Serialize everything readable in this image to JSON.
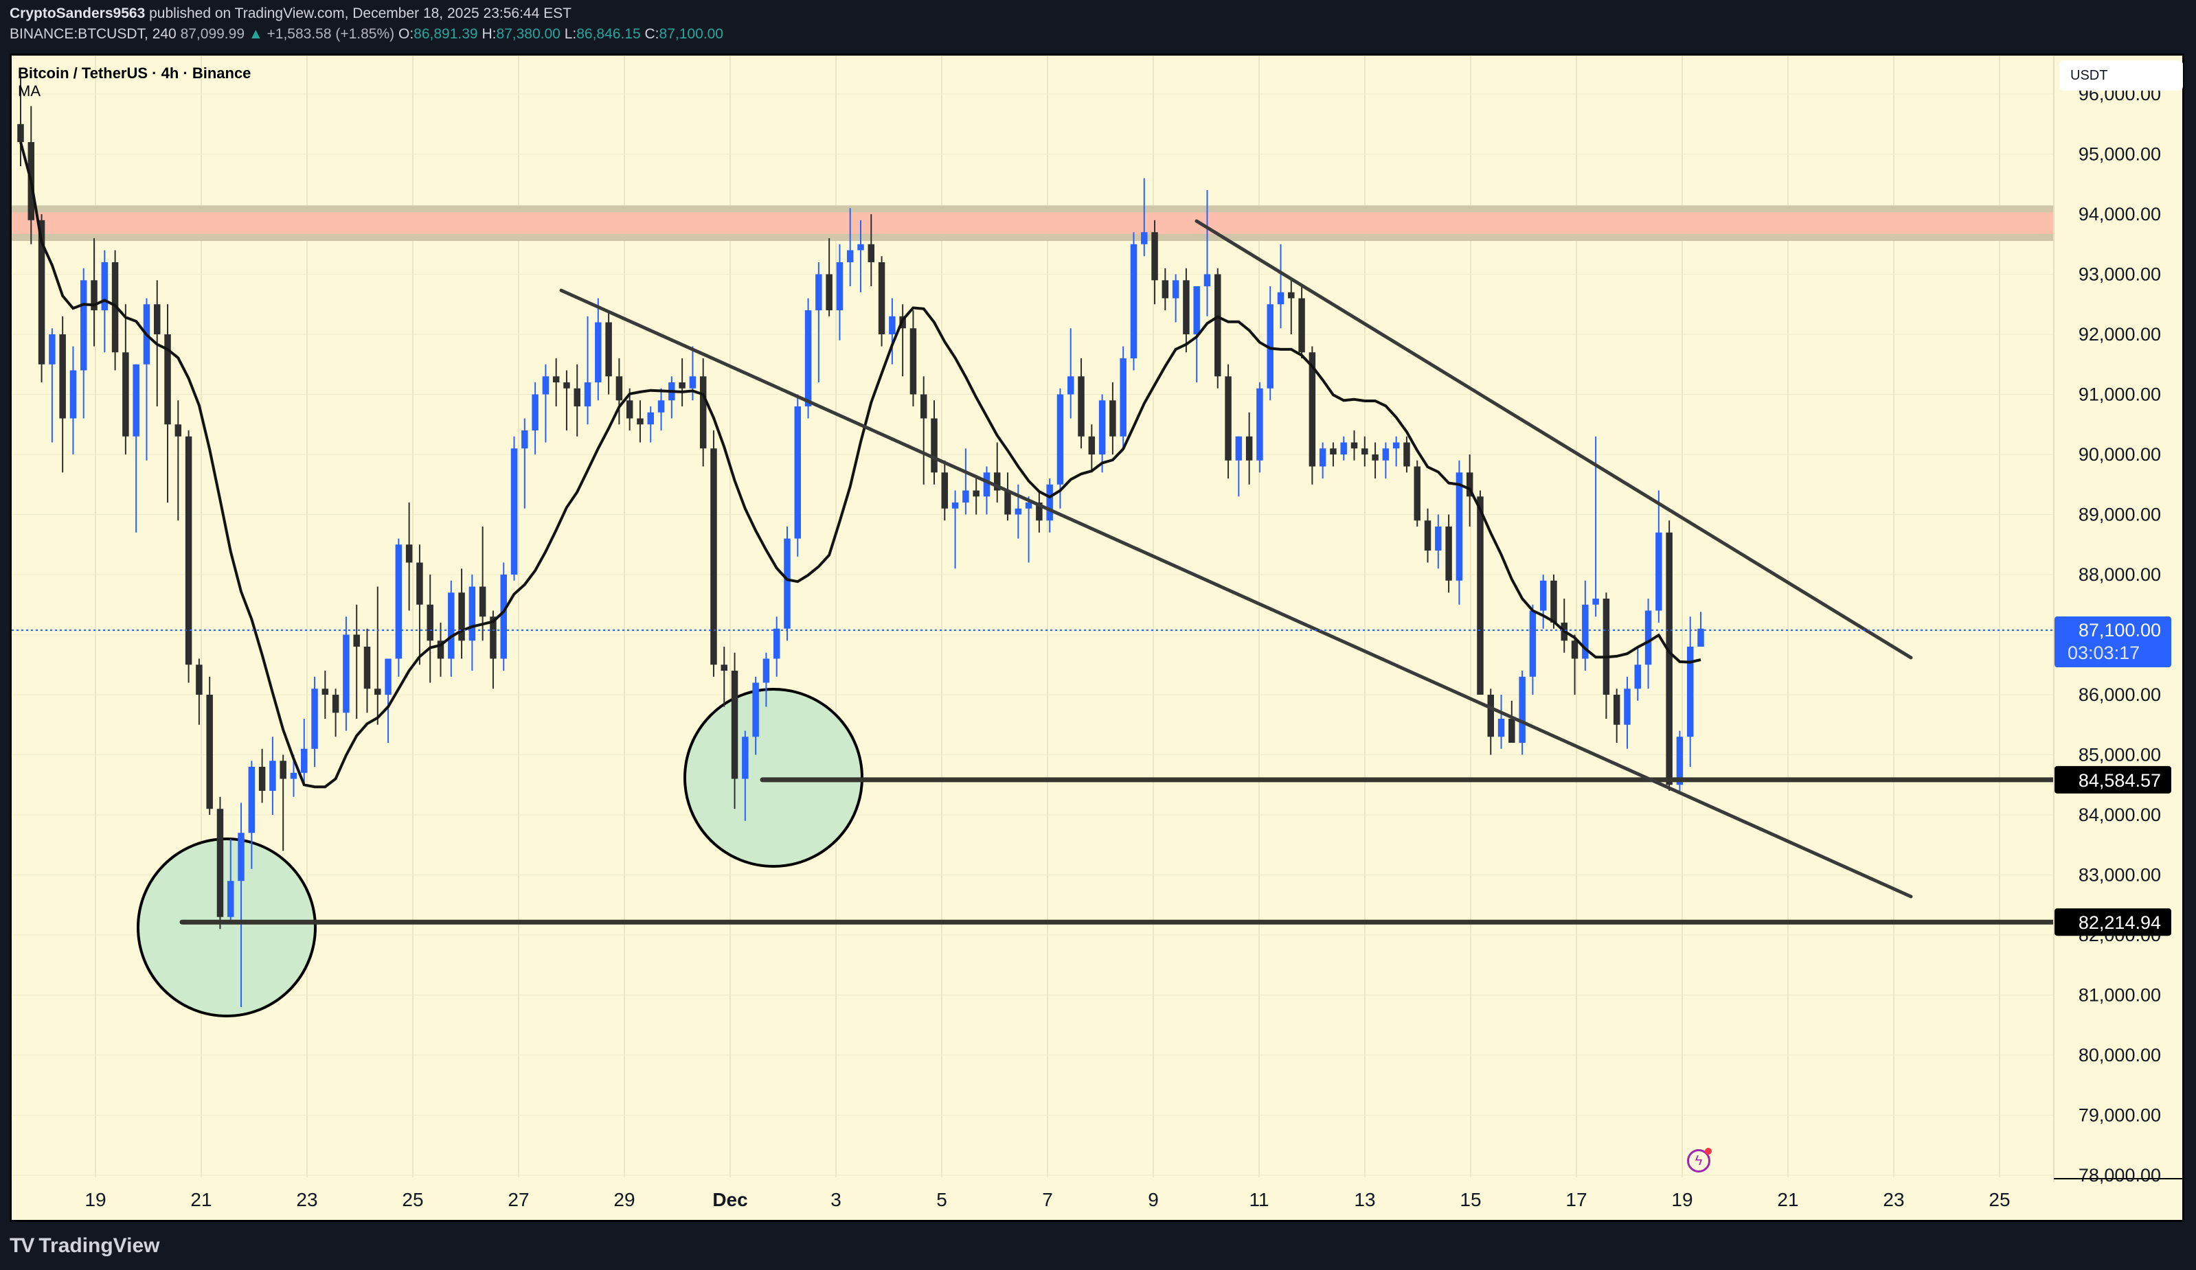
{
  "header": {
    "author": "CryptoSanders9563",
    "published": "published on TradingView.com, December 18, 2025 23:56:44 EST",
    "symbol": "BINANCE:BTCUSDT, 240",
    "last": "87,099.99",
    "change": "+1,583.58 (+1.85%)",
    "o_label": "O:",
    "o": "86,891.39",
    "h_label": "H:",
    "h": "87,380.00",
    "l_label": "L:",
    "l": "86,846.15",
    "c_label": "C:",
    "c": "87,100.00"
  },
  "legend": {
    "title": "Bitcoin / TetherUS · 4h · Binance",
    "indicator": "MA"
  },
  "price_axis": {
    "currency": "USDT",
    "ticks": [
      "96,000.00",
      "95,000.00",
      "94,000.00",
      "93,000.00",
      "92,000.00",
      "91,000.00",
      "90,000.00",
      "89,000.00",
      "88,000.00",
      "87,000.00",
      "86,000.00",
      "85,000.00",
      "84,000.00",
      "83,000.00",
      "82,000.00",
      "81,000.00",
      "80,000.00",
      "79,000.00",
      "78,000.00"
    ],
    "current_price": {
      "label": "87,100.00",
      "countdown": "03:03:17",
      "color": "#2962ff"
    },
    "level_labels": [
      {
        "label": "84,584.57",
        "price": 84584.57
      },
      {
        "label": "82,214.94",
        "price": 82214.94
      }
    ]
  },
  "time_axis": {
    "ticks": [
      "19",
      "21",
      "23",
      "25",
      "27",
      "29",
      "Dec",
      "3",
      "5",
      "7",
      "9",
      "11",
      "13",
      "15",
      "17",
      "19",
      "21",
      "23",
      "25"
    ]
  },
  "footer": {
    "brand": "TradingView",
    "logo": "TV"
  },
  "colors": {
    "background": "#fdf8d7",
    "bull": "#2962ff",
    "bear": "#2e2e2e",
    "ma": "#131313",
    "zone": "#fbbfac",
    "circle_fill": "#cdeacc",
    "trendline": "#3a3a3a"
  },
  "chart_data": {
    "type": "candlestick",
    "title": "Bitcoin / TetherUS · 4h · Binance",
    "xlabel": "",
    "ylabel": "USDT",
    "ylim": [
      77800,
      96300
    ],
    "x_ticks": [
      "Nov 19",
      "Nov 21",
      "Nov 23",
      "Nov 25",
      "Nov 27",
      "Nov 29",
      "Dec 1",
      "Dec 3",
      "Dec 5",
      "Dec 7",
      "Dec 9",
      "Dec 11",
      "Dec 13",
      "Dec 15",
      "Dec 17",
      "Dec 19",
      "Dec 21",
      "Dec 23",
      "Dec 25"
    ],
    "price_ticks": [
      96000,
      95000,
      94000,
      93000,
      92000,
      91000,
      90000,
      89000,
      88000,
      87000,
      86000,
      85000,
      84000,
      83000,
      82000,
      81000,
      80000,
      79000,
      78000
    ],
    "candles_ohlc": [
      [
        95500,
        96300,
        94800,
        95200
      ],
      [
        95200,
        95800,
        93500,
        93900
      ],
      [
        93900,
        94000,
        91200,
        91500
      ],
      [
        91500,
        92100,
        90200,
        92000
      ],
      [
        92000,
        92300,
        89700,
        90600
      ],
      [
        90600,
        91800,
        90000,
        91400
      ],
      [
        91400,
        93100,
        90600,
        92900
      ],
      [
        92900,
        93600,
        91800,
        92400
      ],
      [
        92400,
        93400,
        91700,
        93200
      ],
      [
        93200,
        93400,
        91400,
        91700
      ],
      [
        91700,
        92500,
        90000,
        90300
      ],
      [
        90300,
        91500,
        88700,
        91500
      ],
      [
        91500,
        92600,
        89900,
        92500
      ],
      [
        92500,
        92900,
        90800,
        92000
      ],
      [
        92000,
        92500,
        89200,
        90500
      ],
      [
        90500,
        90900,
        88900,
        90300
      ],
      [
        90300,
        90400,
        86200,
        86500
      ],
      [
        86500,
        86600,
        85500,
        86000
      ],
      [
        86000,
        86300,
        84000,
        84100
      ],
      [
        84100,
        84300,
        82100,
        82300
      ],
      [
        82300,
        83600,
        82200,
        82900
      ],
      [
        82900,
        84200,
        80800,
        83700
      ],
      [
        83700,
        84900,
        83100,
        84800
      ],
      [
        84800,
        85100,
        84200,
        84400
      ],
      [
        84400,
        85300,
        84000,
        84900
      ],
      [
        84900,
        85000,
        83400,
        84600
      ],
      [
        84600,
        85000,
        84300,
        84700
      ],
      [
        84700,
        85600,
        84500,
        85100
      ],
      [
        85100,
        86300,
        84800,
        86100
      ],
      [
        86100,
        86400,
        85600,
        86000
      ],
      [
        86000,
        86100,
        85300,
        85700
      ],
      [
        85700,
        87300,
        85400,
        87000
      ],
      [
        87000,
        87500,
        85600,
        86800
      ],
      [
        86800,
        87100,
        85700,
        86100
      ],
      [
        86100,
        87800,
        85500,
        86000
      ],
      [
        86000,
        86500,
        85200,
        86600
      ],
      [
        86600,
        88600,
        86300,
        88500
      ],
      [
        88500,
        89200,
        87400,
        88200
      ],
      [
        88200,
        88500,
        86500,
        87500
      ],
      [
        87500,
        88000,
        86200,
        86900
      ],
      [
        86900,
        87200,
        86300,
        86600
      ],
      [
        86600,
        87900,
        86300,
        87700
      ],
      [
        87700,
        88100,
        86600,
        86900
      ],
      [
        86900,
        88000,
        86400,
        87800
      ],
      [
        87800,
        88800,
        86900,
        87300
      ],
      [
        87300,
        87400,
        86100,
        86600
      ],
      [
        86600,
        88200,
        86400,
        88000
      ],
      [
        88000,
        90300,
        87900,
        90100
      ],
      [
        90100,
        90600,
        89100,
        90400
      ],
      [
        90400,
        91200,
        90000,
        91000
      ],
      [
        91000,
        91500,
        90200,
        91300
      ],
      [
        91300,
        91600,
        90800,
        91200
      ],
      [
        91200,
        91400,
        90400,
        91100
      ],
      [
        91100,
        91500,
        90300,
        90800
      ],
      [
        90800,
        92300,
        90500,
        91200
      ],
      [
        91200,
        92600,
        90900,
        92200
      ],
      [
        92200,
        92400,
        91000,
        91300
      ],
      [
        91300,
        91600,
        90500,
        90900
      ],
      [
        90900,
        91100,
        90400,
        90600
      ],
      [
        90600,
        90900,
        90200,
        90500
      ],
      [
        90500,
        90800,
        90200,
        90700
      ],
      [
        90700,
        91100,
        90400,
        90900
      ],
      [
        90900,
        91300,
        90600,
        91200
      ],
      [
        91200,
        91600,
        90800,
        91100
      ],
      [
        91100,
        91800,
        90900,
        91300
      ],
      [
        91300,
        91600,
        89800,
        90100
      ],
      [
        90100,
        90400,
        86300,
        86500
      ],
      [
        86500,
        86800,
        85800,
        86400
      ],
      [
        86400,
        86700,
        84100,
        84600
      ],
      [
        84600,
        85400,
        83900,
        85300
      ],
      [
        85300,
        86300,
        85000,
        86200
      ],
      [
        86200,
        86700,
        85800,
        86600
      ],
      [
        86600,
        87300,
        86300,
        87100
      ],
      [
        87100,
        88800,
        86900,
        88600
      ],
      [
        88600,
        91000,
        88300,
        90800
      ],
      [
        90800,
        92600,
        90600,
        92400
      ],
      [
        92400,
        93200,
        91200,
        93000
      ],
      [
        93000,
        93600,
        92300,
        92400
      ],
      [
        92400,
        93500,
        91900,
        93200
      ],
      [
        93200,
        94100,
        92800,
        93400
      ],
      [
        93400,
        93900,
        92700,
        93500
      ],
      [
        93500,
        94000,
        92800,
        93200
      ],
      [
        93200,
        93300,
        91800,
        92000
      ],
      [
        92000,
        92600,
        91500,
        92300
      ],
      [
        92300,
        92500,
        91300,
        92100
      ],
      [
        92100,
        92400,
        90800,
        91000
      ],
      [
        91000,
        91300,
        89500,
        90600
      ],
      [
        90600,
        90900,
        89500,
        89700
      ],
      [
        89700,
        89900,
        88900,
        89100
      ],
      [
        89100,
        89400,
        88100,
        89200
      ],
      [
        89200,
        90100,
        89000,
        89400
      ],
      [
        89400,
        89600,
        89000,
        89300
      ],
      [
        89300,
        89800,
        89000,
        89700
      ],
      [
        89700,
        90200,
        89200,
        89400
      ],
      [
        89400,
        89700,
        88900,
        89000
      ],
      [
        89000,
        89500,
        88600,
        89100
      ],
      [
        89100,
        89300,
        88200,
        89200
      ],
      [
        89200,
        89400,
        88700,
        88900
      ],
      [
        88900,
        89600,
        88700,
        89500
      ],
      [
        89500,
        91100,
        89100,
        91000
      ],
      [
        91000,
        92100,
        90600,
        91300
      ],
      [
        91300,
        91600,
        90100,
        90300
      ],
      [
        90300,
        90500,
        89700,
        90000
      ],
      [
        90000,
        91000,
        89700,
        90900
      ],
      [
        90900,
        91200,
        90000,
        90300
      ],
      [
        90300,
        91800,
        90100,
        91600
      ],
      [
        91600,
        93700,
        91400,
        93500
      ],
      [
        93500,
        94600,
        93300,
        93700
      ],
      [
        93700,
        93900,
        92500,
        92900
      ],
      [
        92900,
        93100,
        92400,
        92600
      ],
      [
        92600,
        93000,
        92200,
        92900
      ],
      [
        92900,
        93100,
        91700,
        92000
      ],
      [
        92000,
        92700,
        91200,
        92800
      ],
      [
        92800,
        94400,
        92300,
        93000
      ],
      [
        93000,
        93100,
        91100,
        91300
      ],
      [
        91300,
        91500,
        89600,
        89900
      ],
      [
        89900,
        90300,
        89300,
        90300
      ],
      [
        90300,
        90700,
        89500,
        89900
      ],
      [
        89900,
        91200,
        89700,
        91100
      ],
      [
        91100,
        92800,
        90900,
        92500
      ],
      [
        92500,
        93500,
        92100,
        92700
      ],
      [
        92700,
        92900,
        92000,
        92600
      ],
      [
        92600,
        92800,
        91600,
        91700
      ],
      [
        91700,
        91800,
        89500,
        89800
      ],
      [
        89800,
        90200,
        89600,
        90100
      ],
      [
        90100,
        90200,
        89800,
        90000
      ],
      [
        90000,
        90300,
        89900,
        90200
      ],
      [
        90200,
        90400,
        89900,
        90100
      ],
      [
        90100,
        90300,
        89800,
        90000
      ],
      [
        90000,
        90200,
        89600,
        89900
      ],
      [
        89900,
        90200,
        89600,
        90100
      ],
      [
        90100,
        90300,
        89800,
        90200
      ],
      [
        90200,
        90300,
        89700,
        89800
      ],
      [
        89800,
        89900,
        88800,
        88900
      ],
      [
        88900,
        89100,
        88200,
        88400
      ],
      [
        88400,
        89000,
        88100,
        88800
      ],
      [
        88800,
        89000,
        87700,
        87900
      ],
      [
        87900,
        89900,
        87500,
        89700
      ],
      [
        89700,
        90000,
        88800,
        89300
      ],
      [
        89300,
        89400,
        86000,
        86000
      ],
      [
        86000,
        86100,
        85000,
        85300
      ],
      [
        85300,
        86000,
        85100,
        85600
      ],
      [
        85600,
        85900,
        85200,
        85200
      ],
      [
        85200,
        86400,
        85000,
        86300
      ],
      [
        86300,
        87500,
        86000,
        87400
      ],
      [
        87400,
        88000,
        87100,
        87900
      ],
      [
        87900,
        88000,
        87100,
        87200
      ],
      [
        87200,
        87600,
        86700,
        86900
      ],
      [
        86900,
        87000,
        86000,
        86600
      ],
      [
        86600,
        87900,
        86400,
        87500
      ],
      [
        87500,
        90300,
        87300,
        87600
      ],
      [
        87600,
        87700,
        85600,
        86000
      ],
      [
        86000,
        86100,
        85200,
        85500
      ],
      [
        85500,
        86300,
        85100,
        86100
      ],
      [
        86100,
        86800,
        85900,
        86500
      ],
      [
        86500,
        87600,
        86100,
        87400
      ],
      [
        87400,
        89400,
        87200,
        88700
      ],
      [
        88700,
        88900,
        84400,
        84500
      ],
      [
        84500,
        85400,
        84400,
        85300
      ],
      [
        85300,
        87300,
        84800,
        86800
      ],
      [
        86800,
        87380,
        86800,
        87100
      ]
    ],
    "moving_average": "MA (approx. 20-period) tracking price: ~95,800 at Nov 18 → 85,300 at Nov 24 → 90,800 at Nov 30 → 88,600 at Dec 2 → 91,800 at Dec 6 → 90,100 at Dec 9 → 91,600 at Dec 11 → 90,200 at Dec 14 → 87,600 at Dec 17 → 86,800 at Dec 19",
    "annotations": [
      {
        "type": "zone",
        "label": "resistance zone",
        "from": 93600,
        "to": 94100,
        "color": "#fbbfac"
      },
      {
        "type": "horizontal_line",
        "price": 84584.57,
        "from": "Dec 1"
      },
      {
        "type": "horizontal_line",
        "price": 82214.94,
        "from": "Nov 21"
      },
      {
        "type": "trendline",
        "label": "descending channel upper",
        "points": [
          [
            "Dec 10",
            93900
          ],
          [
            "Dec 23",
            86600
          ]
        ]
      },
      {
        "type": "trendline",
        "label": "descending channel lower",
        "points": [
          [
            "Nov 28",
            92800
          ],
          [
            "Dec 23",
            82600
          ]
        ]
      },
      {
        "type": "circle",
        "label": "swing low Nov 21",
        "center": [
          "Nov 21.5",
          82200
        ]
      },
      {
        "type": "circle",
        "label": "swing low Dec 1",
        "center": [
          "Dec 2",
          84600
        ]
      }
    ],
    "grid": true,
    "legend_position": "top-left"
  }
}
